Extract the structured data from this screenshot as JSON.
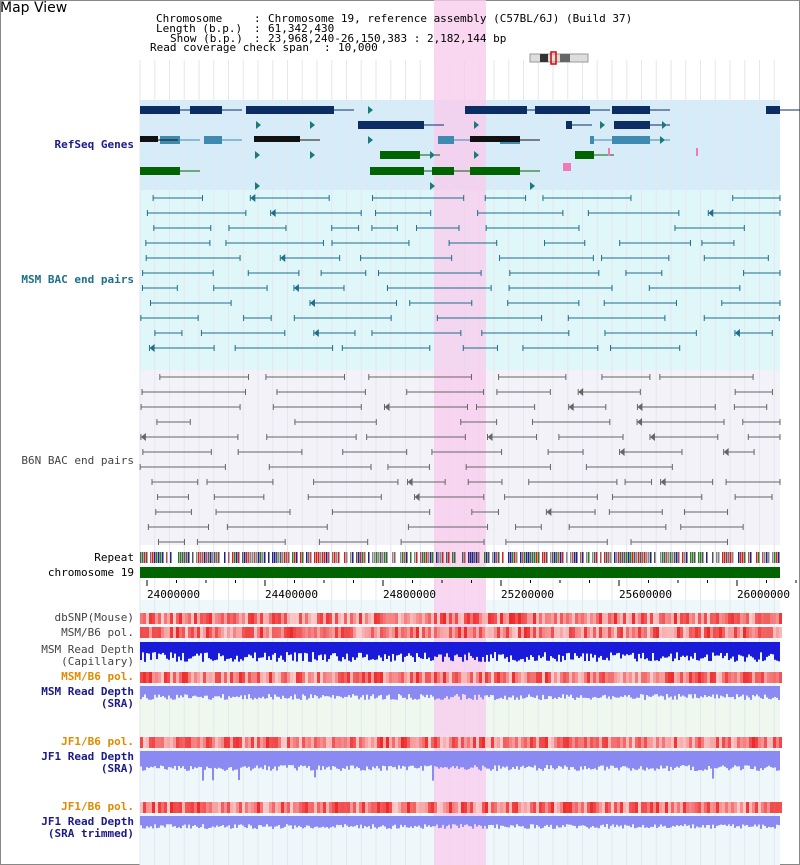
{
  "title": "Map View",
  "header": {
    "chromosome_key": "Chromosome",
    "chromosome_val": "Chromosome 19, reference assembly (C57BL/6J) (Build 37)",
    "length_key": "Length (b.p.)",
    "length_val": "61,342,430",
    "show_key": "Show (b.p.)",
    "show_val": "23,968,240-26,150,383 : 2,182,144 bp",
    "coverage_key": "Read coverage check span",
    "coverage_val": "10,000"
  },
  "tracks": {
    "refseq": "RefSeq Genes",
    "msm_bac": "MSM BAC end pairs",
    "b6n_bac": "B6N BAC end pairs",
    "repeat": "Repeat",
    "chromosome": "chromosome 19",
    "dbsnp": "dbSNP(Mouse)",
    "msm_b6_pol": "MSM/B6 pol.",
    "msm_read_depth_cap_1": "MSM Read Depth",
    "msm_read_depth_cap_2": "(Capillary)",
    "msm_b6_pol_sra": "MSM/B6 pol.",
    "msm_read_depth_sra_1": "MSM Read Depth",
    "msm_read_depth_sra_2": "(SRA)",
    "jf1_b6_pol": "JF1/B6 pol.",
    "jf1_read_depth_1": "JF1 Read Depth",
    "jf1_read_depth_2": "(SRA)",
    "jf1_b6_pol_trim": "JF1/B6 pol.",
    "jf1_read_depth_trim_1": "JF1 Read Depth",
    "jf1_read_depth_trim_2": "(SRA trimmed)"
  },
  "axis": {
    "ticks": [
      "24000000",
      "24400000",
      "24800000",
      "25200000",
      "25600000",
      "26000000"
    ]
  },
  "colors": {
    "refseq_bg": "#d6ecf8",
    "msm_bg": "#e0f7f9",
    "highlight": "#f7cdee",
    "dark_blue": "#0c2d63",
    "mid_blue": "#3e8ab0",
    "gene_green": "#006400",
    "bac_msm": "#1e6e8c",
    "bac_b6n": "#666666",
    "depth_dark": "#1a1ad9",
    "depth_light": "#8a8af2",
    "pol_red": "#ee3b3b"
  }
}
